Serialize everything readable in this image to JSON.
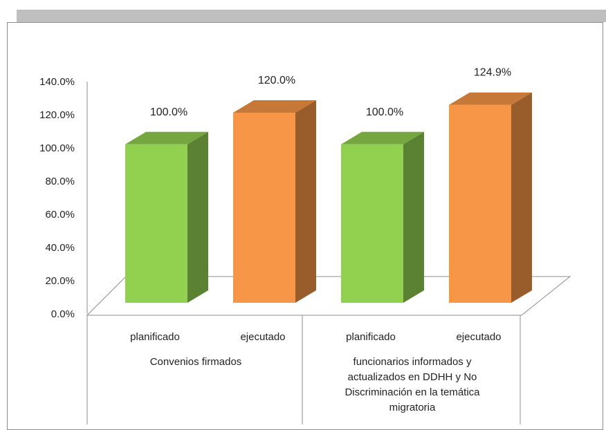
{
  "chart_data": {
    "type": "bar",
    "style": "3d-column",
    "ylim": [
      0,
      140
    ],
    "yticks": [
      "0.0%",
      "20.0%",
      "40.0%",
      "60.0%",
      "80.0%",
      "100.0%",
      "120.0%",
      "140.0%"
    ],
    "groups": [
      {
        "label_lines": [
          "Convenios firmados"
        ],
        "bars": [
          {
            "category": "planificado",
            "value": 100.0,
            "label": "100.0%",
            "color": "#92d050"
          },
          {
            "category": "ejecutado",
            "value": 120.0,
            "label": "120.0%",
            "color": "#f79646"
          }
        ]
      },
      {
        "label_lines": [
          "funcionarios informados y",
          "actualizados en DDHH y No",
          "Discriminación en la temática",
          "migratoria"
        ],
        "bars": [
          {
            "category": "planificado",
            "value": 100.0,
            "label": "100.0%",
            "color": "#92d050"
          },
          {
            "category": "ejecutado",
            "value": 124.9,
            "label": "124.9%",
            "color": "#f79646"
          }
        ]
      }
    ],
    "grid": false,
    "legend": "none"
  }
}
